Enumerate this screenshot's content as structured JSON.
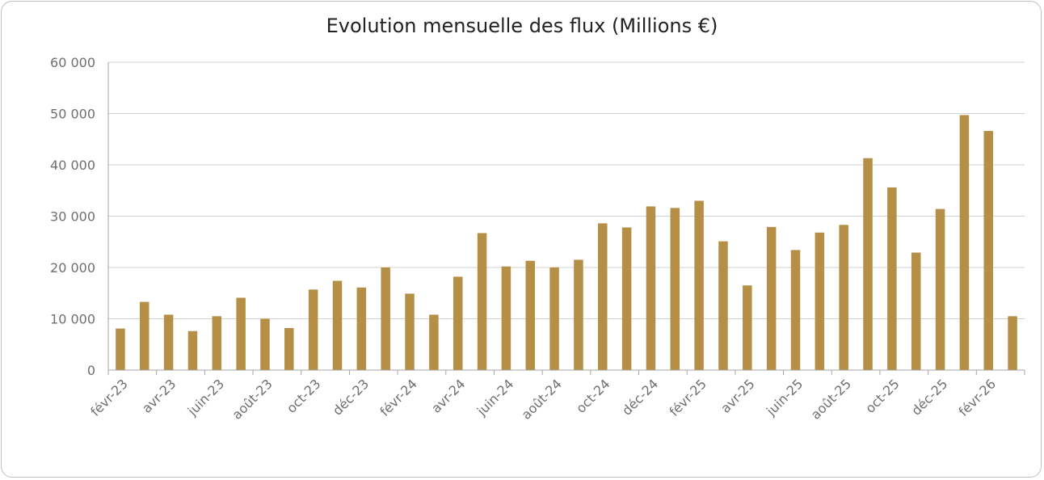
{
  "chart_data": {
    "type": "bar",
    "title": "Evolution mensuelle des flux (Millions €)",
    "xlabel": "",
    "ylabel": "",
    "ylim": [
      0,
      60000
    ],
    "yticks": [
      0,
      10000,
      20000,
      30000,
      40000,
      50000,
      60000
    ],
    "ytick_labels": [
      "0",
      "10 000",
      "20 000",
      "30 000",
      "40 000",
      "50 000",
      "60 000"
    ],
    "grid": true,
    "bar_color": "#b48f45",
    "categories": [
      "févr-23",
      "mars-23",
      "avr-23",
      "mai-23",
      "juin-23",
      "juil-23",
      "août-23",
      "sept-23",
      "oct-23",
      "nov-23",
      "déc-23",
      "janv-24",
      "févr-24",
      "mars-24",
      "avr-24",
      "mai-24",
      "juin-24",
      "juil-24",
      "août-24",
      "sept-24",
      "oct-24",
      "nov-24",
      "déc-24",
      "janv-25",
      "févr-25",
      "mars-25",
      "avr-25",
      "mai-25",
      "juin-25",
      "juil-25",
      "août-25",
      "sept-25",
      "oct-25",
      "nov-25",
      "déc-25",
      "janv-26",
      "févr-26",
      "mars-26"
    ],
    "xtick_labels": [
      "févr-23",
      "avr-23",
      "juin-23",
      "août-23",
      "oct-23",
      "déc-23",
      "févr-24",
      "avr-24",
      "juin-24",
      "août-24",
      "oct-24",
      "déc-24",
      "févr-25",
      "avr-25",
      "juin-25",
      "août-25",
      "oct-25",
      "déc-25",
      "févr-26"
    ],
    "values": [
      8100,
      13300,
      10800,
      7600,
      10500,
      14100,
      10000,
      8200,
      15700,
      17400,
      16100,
      20000,
      14900,
      10800,
      18200,
      26700,
      20200,
      21300,
      20000,
      21500,
      28600,
      27800,
      31900,
      31600,
      33000,
      25100,
      16500,
      27900,
      23400,
      26800,
      28300,
      41300,
      35600,
      22900,
      31400,
      49700,
      46600,
      10500
    ]
  }
}
